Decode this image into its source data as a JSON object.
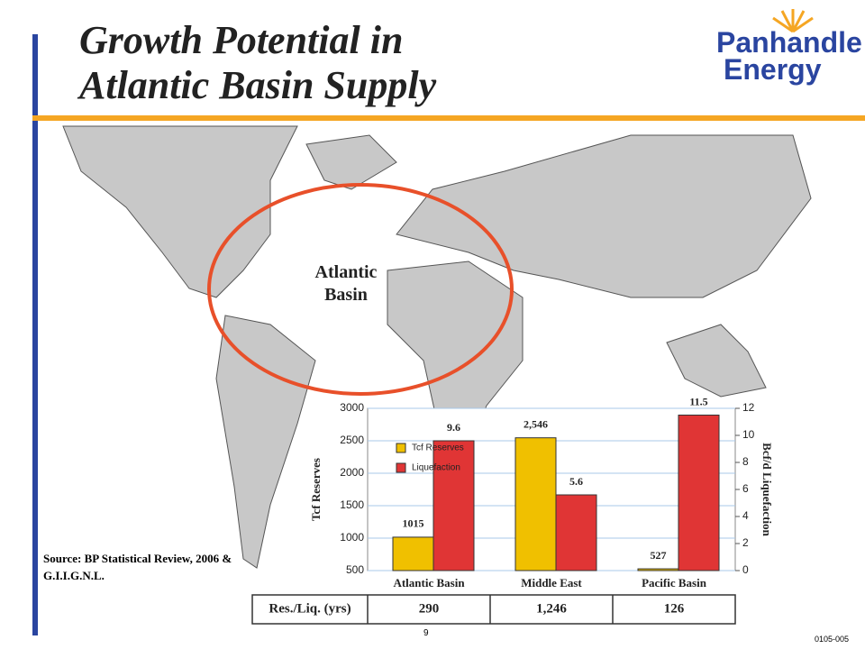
{
  "title_lines": [
    "Growth Potential in",
    "Atlantic Basin Supply"
  ],
  "logo_lines": [
    "Panhandle",
    "Energy"
  ],
  "map": {
    "annotation": "Atlantic Basin"
  },
  "source": "Source: BP Statistical Review, 2006 & G.I.I.G.N.L.",
  "table": {
    "header": "Res./Liq. (yrs)",
    "cells": [
      "290",
      "1,246",
      "126"
    ]
  },
  "page_number": "9",
  "doc_code": "0105-005",
  "chart_data": {
    "type": "bar",
    "categories": [
      "Atlantic Basin",
      "Middle East",
      "Pacific Basin"
    ],
    "series": [
      {
        "name": "Tcf Reserves",
        "color": "#f0c000",
        "values": [
          1015,
          2546,
          527
        ],
        "value_labels": [
          "1015",
          "2,546",
          "527"
        ]
      },
      {
        "name": "Liquefaction",
        "color": "#e03535",
        "values": [
          9.6,
          5.6,
          11.5
        ],
        "axis": "y2"
      }
    ],
    "y_label": "Tcf Reserves",
    "y2_label": "Bcf/d Liquefaction",
    "ylim": [
      500,
      3000
    ],
    "yticks": [
      500,
      1000,
      1500,
      2000,
      2500,
      3000
    ],
    "y2lim": [
      0,
      12
    ],
    "y2ticks": [
      0,
      2,
      4,
      6,
      8,
      10,
      12
    ],
    "grid": true,
    "legend": "upper left"
  }
}
